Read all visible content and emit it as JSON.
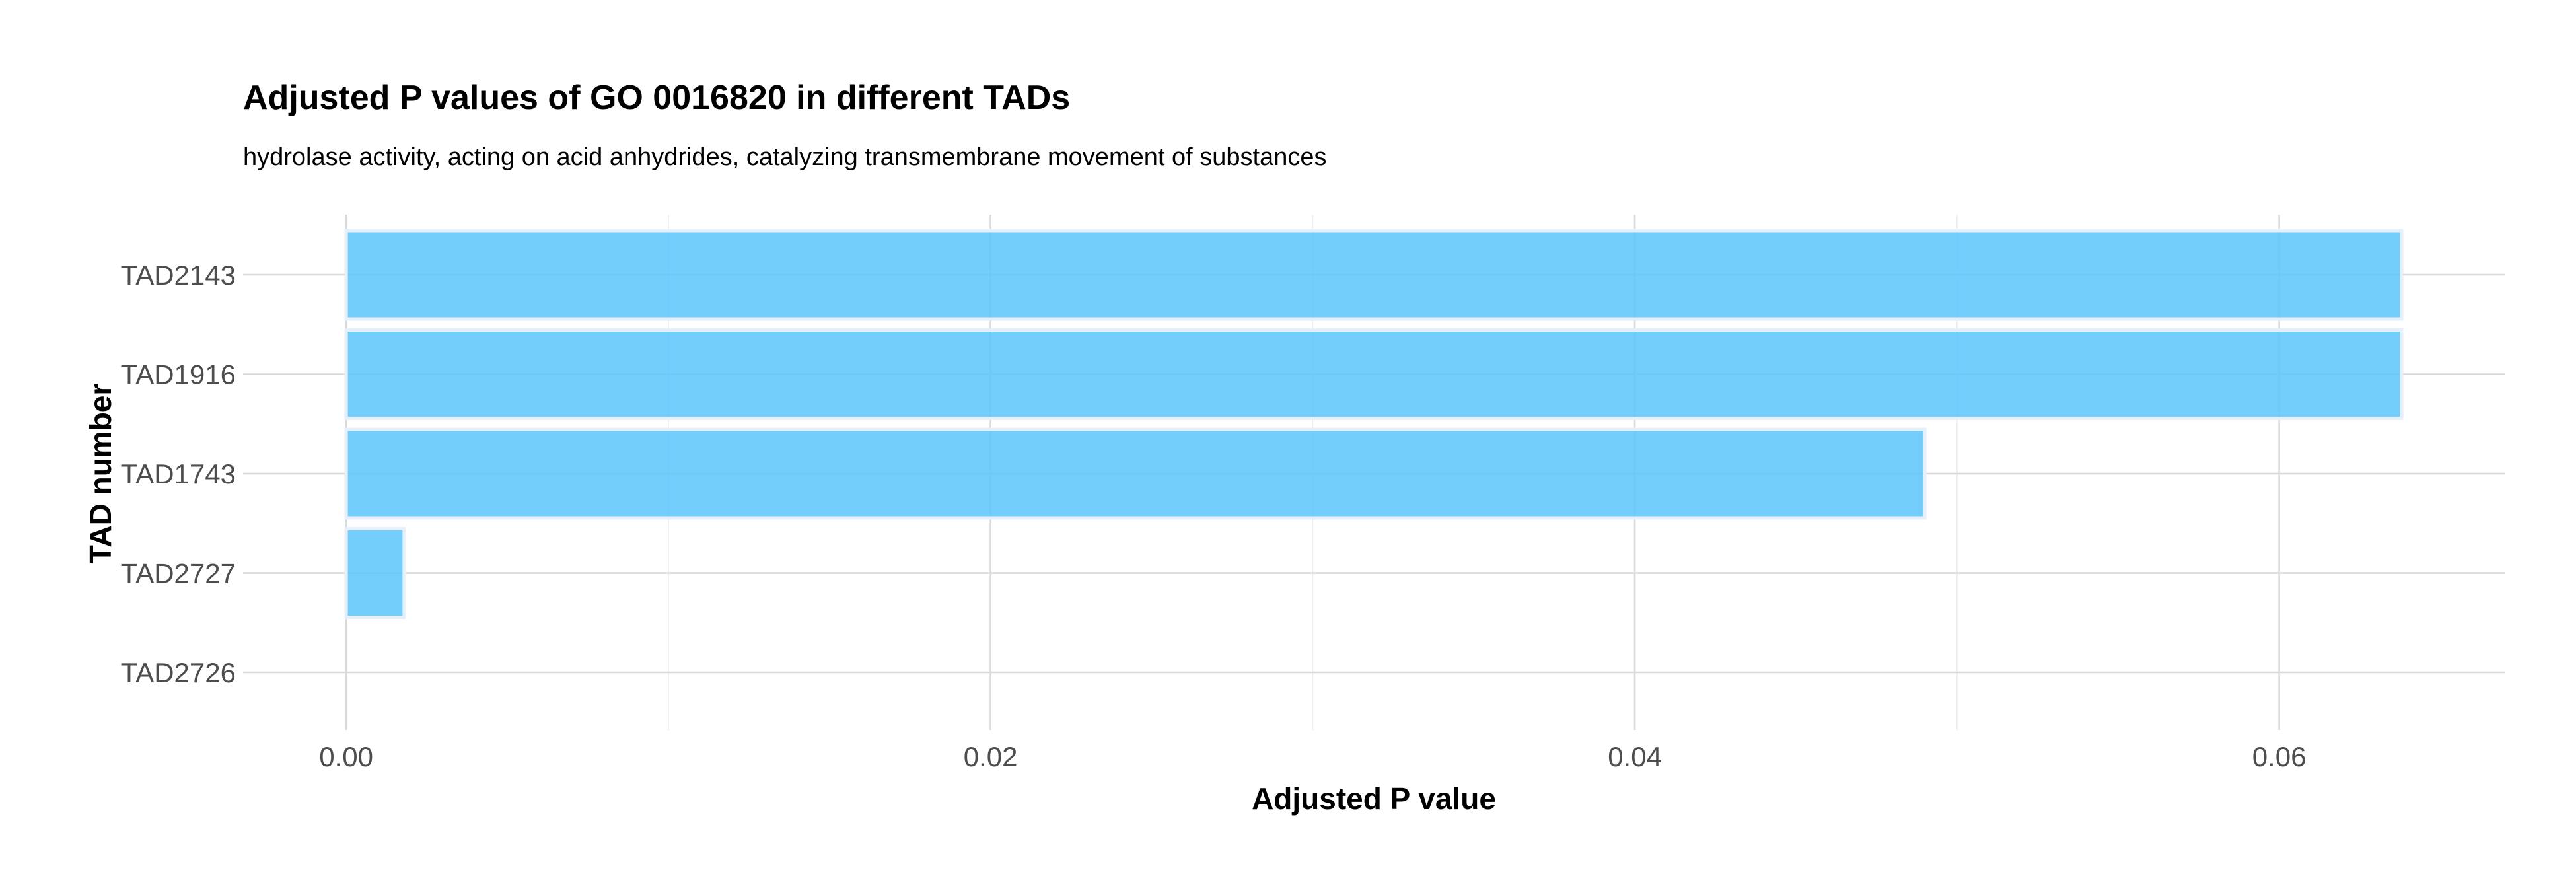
{
  "chart_data": {
    "type": "bar",
    "orientation": "horizontal",
    "title": "Adjusted P values of GO 0016820 in different TADs",
    "subtitle": "hydrolase activity, acting on acid anhydrides, catalyzing transmembrane movement of substances",
    "xlabel": "Adjusted P value",
    "ylabel": "TAD number",
    "categories": [
      "TAD2143",
      "TAD1916",
      "TAD1743",
      "TAD2727",
      "TAD2726"
    ],
    "values": [
      0.0638,
      0.0638,
      0.049,
      0.0018,
      0.0
    ],
    "xlim": [
      -0.0032,
      0.067
    ],
    "xticks": [
      0.0,
      0.02,
      0.04,
      0.06
    ],
    "xtick_labels": [
      "0.00",
      "0.02",
      "0.04",
      "0.06"
    ],
    "grid": true,
    "legend": false,
    "bar_color": "#5bc6fc",
    "bar_outline": "#e6f0fa",
    "bar_opacity": 0.85
  }
}
